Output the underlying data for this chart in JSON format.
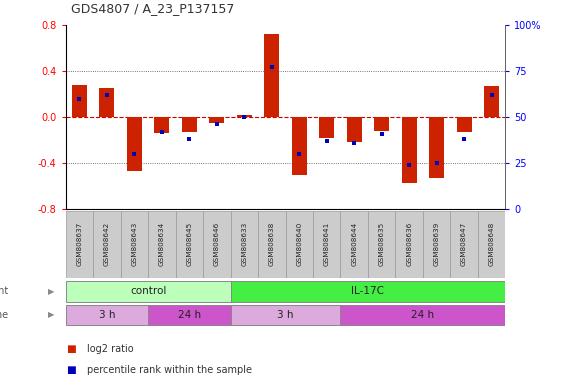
{
  "title": "GDS4807 / A_23_P137157",
  "samples": [
    "GSM808637",
    "GSM808642",
    "GSM808643",
    "GSM808634",
    "GSM808645",
    "GSM808646",
    "GSM808633",
    "GSM808638",
    "GSM808640",
    "GSM808641",
    "GSM808644",
    "GSM808635",
    "GSM808636",
    "GSM808639",
    "GSM808647",
    "GSM808648"
  ],
  "log2_ratio": [
    0.28,
    0.25,
    -0.47,
    -0.14,
    -0.13,
    -0.05,
    0.02,
    0.72,
    -0.5,
    -0.18,
    -0.22,
    -0.12,
    -0.57,
    -0.53,
    -0.13,
    0.27
  ],
  "percentile": [
    60,
    62,
    30,
    42,
    38,
    46,
    50,
    77,
    30,
    37,
    36,
    41,
    24,
    25,
    38,
    62
  ],
  "ylim": [
    -0.8,
    0.8
  ],
  "right_ylim": [
    0,
    100
  ],
  "yticks_left": [
    -0.8,
    -0.4,
    0.0,
    0.4,
    0.8
  ],
  "yticks_right": [
    0,
    25,
    50,
    75,
    100
  ],
  "agent_groups": [
    {
      "label": "control",
      "start": 0,
      "end": 6,
      "color": "#bbffbb"
    },
    {
      "label": "IL-17C",
      "start": 6,
      "end": 16,
      "color": "#44ee44"
    }
  ],
  "time_groups": [
    {
      "label": "3 h",
      "start": 0,
      "end": 3,
      "color": "#ddaadd"
    },
    {
      "label": "24 h",
      "start": 3,
      "end": 6,
      "color": "#cc55cc"
    },
    {
      "label": "3 h",
      "start": 6,
      "end": 10,
      "color": "#ddaadd"
    },
    {
      "label": "24 h",
      "start": 10,
      "end": 16,
      "color": "#cc55cc"
    }
  ],
  "bar_color": "#cc2200",
  "dot_color": "#0000bb",
  "zero_line_color": "#cc0000",
  "dot_grid_color": "#444444",
  "bg_color": "#ffffff",
  "sample_box_color": "#cccccc",
  "legend_items": [
    {
      "label": "log2 ratio",
      "color": "#cc2200"
    },
    {
      "label": "percentile rank within the sample",
      "color": "#0000bb"
    }
  ]
}
